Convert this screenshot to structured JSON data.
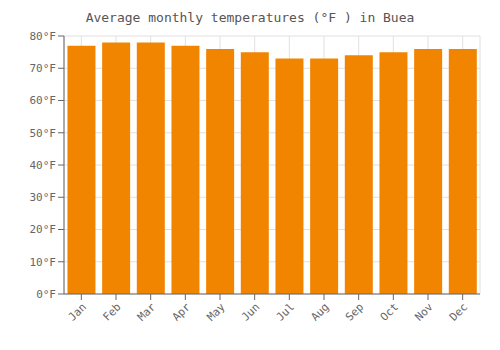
{
  "chart_data": {
    "type": "bar",
    "title": "Average monthly temperatures (°F ) in Buea",
    "categories": [
      "Jan",
      "Feb",
      "Mar",
      "Apr",
      "May",
      "Jun",
      "Jul",
      "Aug",
      "Sep",
      "Oct",
      "Nov",
      "Dec"
    ],
    "values": [
      77,
      78,
      78,
      77,
      76,
      75,
      73,
      73,
      74,
      75,
      76,
      76
    ],
    "color": "#F28500",
    "ylim": [
      0,
      80
    ],
    "yticks": [
      {
        "value": 0,
        "label": "0°F"
      },
      {
        "value": 10,
        "label": "10°F"
      },
      {
        "value": 20,
        "label": "20°F"
      },
      {
        "value": 30,
        "label": "30°F"
      },
      {
        "value": 40,
        "label": "40°F"
      },
      {
        "value": 50,
        "label": "50°F"
      },
      {
        "value": 60,
        "label": "60°F"
      },
      {
        "value": 70,
        "label": "70°F"
      },
      {
        "value": 80,
        "label": "80°F"
      }
    ],
    "grid": true
  }
}
